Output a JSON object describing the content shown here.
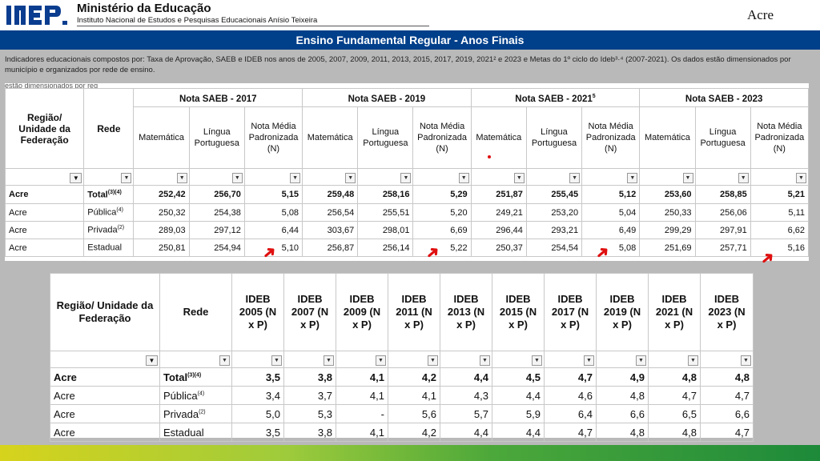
{
  "header": {
    "ministry": "Ministério da Educação",
    "institute": "Instituto Nacional de Estudos e Pesquisas Educacionais Anísio Teixeira",
    "state": "Acre"
  },
  "banner": "Ensino Fundamental Regular - Anos Finais",
  "intro": "Indicadores educacionais compostos por: Taxa de Aprovação, SAEB e IDEB nos anos de 2005, 2007, 2009, 2011, 2013, 2015, 2017, 2019, 2021² e 2023 e Metas do 1º ciclo do Ideb³·⁴ (2007-2021). Os dados estão dimensionados por município e organizados por rede de ensino.",
  "intro_cut": "estão dimensionados por reg",
  "saeb": {
    "col_region": "Região/ Unidade da Federação",
    "col_rede": "Rede",
    "groups": [
      "Nota SAEB - 2017",
      "Nota SAEB - 2019",
      "Nota SAEB - 2021",
      "Nota SAEB - 2023"
    ],
    "group_sup": [
      "",
      "",
      "5",
      ""
    ],
    "subcols": [
      "Matemática",
      "Língua Portuguesa",
      "Nota Média Padronizada (N)"
    ],
    "rows": [
      {
        "region": "Acre",
        "rede": "Total",
        "sup": "(3)(4)",
        "values": [
          "252,42",
          "256,70",
          "5,15",
          "259,48",
          "258,16",
          "5,29",
          "251,87",
          "255,45",
          "5,12",
          "253,60",
          "258,85",
          "5,21"
        ]
      },
      {
        "region": "Acre",
        "rede": "Pública",
        "sup": "(4)",
        "values": [
          "250,32",
          "254,38",
          "5,08",
          "256,54",
          "255,51",
          "5,20",
          "249,21",
          "253,20",
          "5,04",
          "250,33",
          "256,06",
          "5,11"
        ]
      },
      {
        "region": "Acre",
        "rede": "Privada",
        "sup": "(2)",
        "values": [
          "289,03",
          "297,12",
          "6,44",
          "303,67",
          "298,01",
          "6,69",
          "296,44",
          "293,21",
          "6,49",
          "299,29",
          "297,91",
          "6,62"
        ]
      },
      {
        "region": "Acre",
        "rede": "Estadual",
        "sup": "",
        "values": [
          "250,81",
          "254,94",
          "5,10",
          "256,87",
          "256,14",
          "5,22",
          "250,37",
          "254,54",
          "5,08",
          "251,69",
          "257,71",
          "5,16"
        ]
      }
    ]
  },
  "ideb": {
    "col_region": "Região/ Unidade da Federação",
    "col_rede": "Rede",
    "years": [
      "IDEB 2005 (N x P)",
      "IDEB 2007 (N x P)",
      "IDEB 2009 (N x P)",
      "IDEB 2011 (N x P)",
      "IDEB 2013 (N x P)",
      "IDEB 2015 (N x P)",
      "IDEB 2017 (N x P)",
      "IDEB 2019 (N x P)",
      "IDEB 2021 (N x P)",
      "IDEB 2023 (N x P)"
    ],
    "rows": [
      {
        "region": "Acre",
        "rede": "Total",
        "sup": "(3)(4)",
        "values": [
          "3,5",
          "3,8",
          "4,1",
          "4,2",
          "4,4",
          "4,5",
          "4,7",
          "4,9",
          "4,8",
          "4,8"
        ]
      },
      {
        "region": "Acre",
        "rede": "Pública",
        "sup": "(4)",
        "values": [
          "3,4",
          "3,7",
          "4,1",
          "4,1",
          "4,3",
          "4,4",
          "4,6",
          "4,8",
          "4,7",
          "4,7"
        ]
      },
      {
        "region": "Acre",
        "rede": "Privada",
        "sup": "(2)",
        "values": [
          "5,0",
          "5,3",
          "-",
          "5,6",
          "5,7",
          "5,9",
          "6,4",
          "6,6",
          "6,5",
          "6,6"
        ]
      },
      {
        "region": "Acre",
        "rede": "Estadual",
        "sup": "",
        "values": [
          "3,5",
          "3,8",
          "4,1",
          "4,2",
          "4,4",
          "4,4",
          "4,7",
          "4,8",
          "4,8",
          "4,7"
        ]
      }
    ]
  },
  "colors": {
    "banner": "#003f8a",
    "arrow": "#e01010"
  }
}
